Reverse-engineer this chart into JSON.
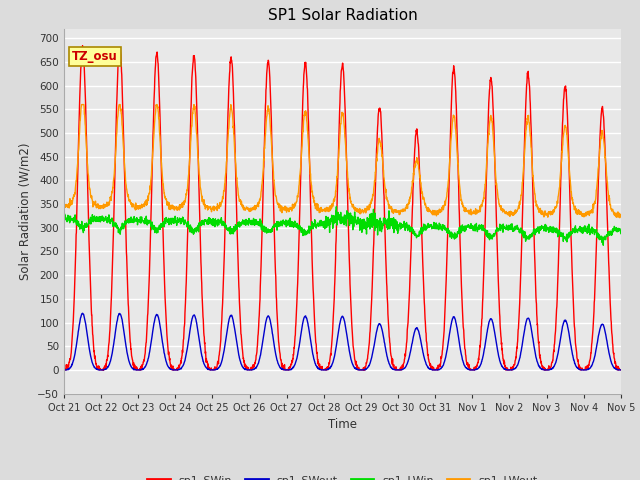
{
  "title": "SP1 Solar Radiation",
  "ylabel": "Solar Radiation (W/m2)",
  "xlabel": "Time",
  "ylim": [
    -50,
    720
  ],
  "yticks": [
    -50,
    0,
    50,
    100,
    150,
    200,
    250,
    300,
    350,
    400,
    450,
    500,
    550,
    600,
    650,
    700
  ],
  "annotation_text": "TZ_osu",
  "annotation_color": "#cc0000",
  "annotation_bg": "#ffff99",
  "annotation_border": "#aa8800",
  "colors": {
    "sp1_SWin": "#ff0000",
    "sp1_SWout": "#0000cc",
    "sp1_LWin": "#00dd00",
    "sp1_LWout": "#ff9900"
  },
  "bg_color": "#dcdcdc",
  "plot_bg_color": "#e8e8e8",
  "n_days": 15,
  "lw": 1.0,
  "x_tick_labels": [
    "Oct 21",
    "Oct 22",
    "Oct 23",
    "Oct 24",
    "Oct 25",
    "Oct 26",
    "Oct 27",
    "Oct 28",
    "Oct 29",
    "Oct 30",
    "Oct 31",
    "Nov 1",
    "Nov 2",
    "Nov 3",
    "Nov 4",
    "Nov 5"
  ]
}
